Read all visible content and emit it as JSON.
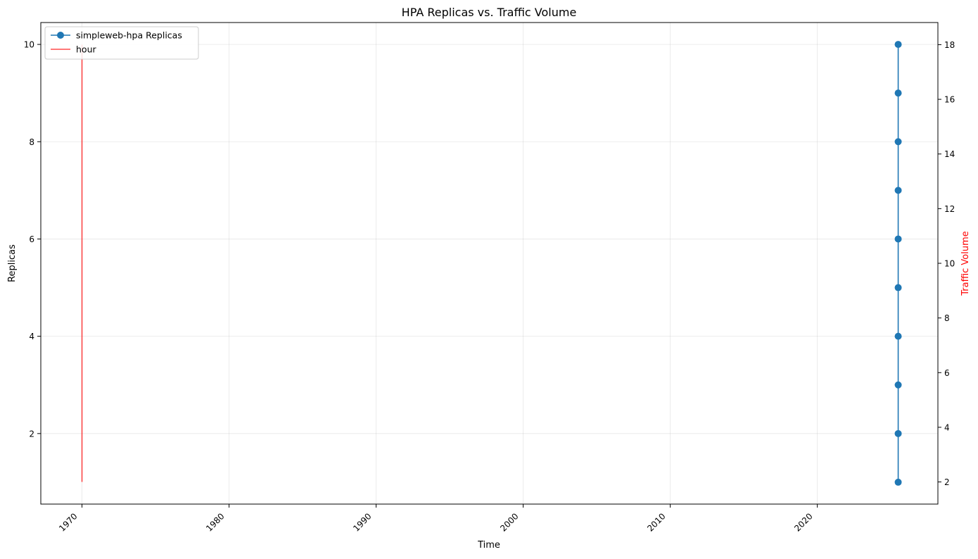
{
  "chart_data": {
    "type": "line",
    "title": "HPA Replicas vs. Traffic Volume",
    "xlabel": "Time",
    "ylabel": "Replicas",
    "y2label": "Traffic Volume",
    "xlim": [
      1967.2,
      2028.2
    ],
    "ylim": [
      0.55,
      10.45
    ],
    "y2lim": [
      1.19,
      18.81
    ],
    "xticks": [
      "1970",
      "1980",
      "1990",
      "2000",
      "2010",
      "2020"
    ],
    "yticks": [
      "2",
      "4",
      "6",
      "8",
      "10"
    ],
    "y2ticks": [
      "2",
      "4",
      "6",
      "8",
      "10",
      "12",
      "14",
      "16",
      "18"
    ],
    "grid": true,
    "legend_position": "upper-left",
    "series": [
      {
        "name": "simpleweb-hpa Replicas",
        "axis": "left",
        "color": "#1f77b4",
        "marker": "circle",
        "x": [
          2025.5,
          2025.5,
          2025.5,
          2025.5,
          2025.5,
          2025.5,
          2025.5,
          2025.5,
          2025.5,
          2025.5
        ],
        "y": [
          1,
          2,
          3,
          4,
          5,
          6,
          7,
          8,
          9,
          10
        ]
      },
      {
        "name": "hour",
        "axis": "right",
        "color": "#ff0000",
        "marker": "none",
        "x": [
          1970,
          1970
        ],
        "y": [
          2,
          18
        ]
      }
    ]
  }
}
